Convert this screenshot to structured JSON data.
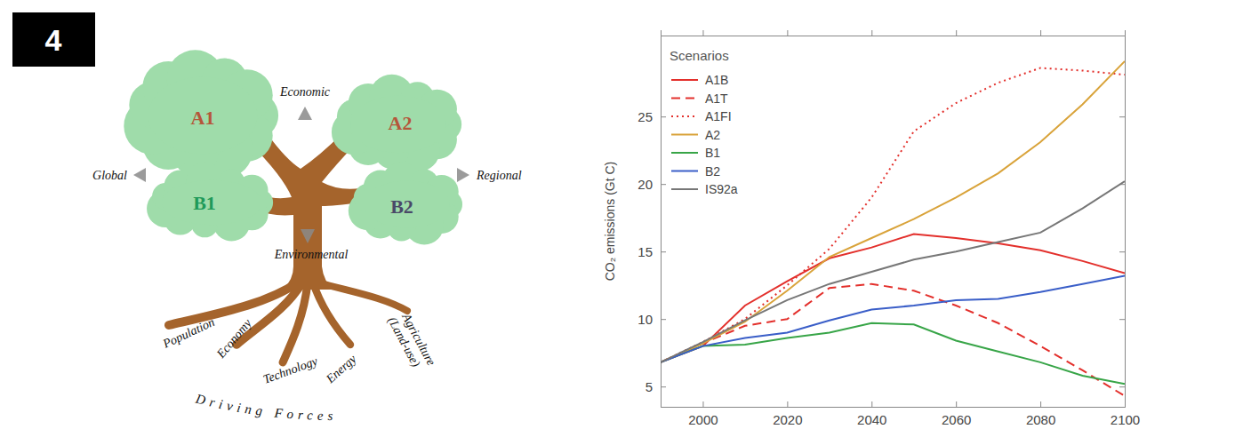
{
  "panel_label": "4",
  "diagram": {
    "scenarios": [
      {
        "label": "A1",
        "color": "#b5563a"
      },
      {
        "label": "A2",
        "color": "#b5563a"
      },
      {
        "label": "B1",
        "color": "#1f9a5a"
      },
      {
        "label": "B2",
        "color": "#4a4968"
      }
    ],
    "directions": {
      "up": "Economic",
      "left": "Global",
      "right": "Regional",
      "down": "Environmental"
    },
    "roots": [
      "Population",
      "Economy",
      "Technology",
      "Energy",
      "Agriculture (Land-use)"
    ],
    "caption": "Driving Forces"
  },
  "chart_data": {
    "type": "line",
    "y_label": "CO₂ emissions (Gt C)",
    "legend": "top-left",
    "legend_title": "Scenarios",
    "grid": false,
    "x": [
      1990,
      2000,
      2010,
      2020,
      2030,
      2040,
      2050,
      2060,
      2070,
      2080,
      2090,
      2100
    ],
    "xlim": [
      1990,
      2100
    ],
    "xticks": [
      2000,
      2020,
      2040,
      2060,
      2080,
      2100
    ],
    "ylim": [
      3.5,
      31
    ],
    "yticks": [
      5,
      10,
      15,
      20,
      25
    ],
    "series": [
      {
        "name": "A1B",
        "color": "#e3302c",
        "line_style": "solid",
        "values": [
          6.8,
          8.0,
          11.0,
          12.8,
          14.5,
          15.3,
          16.3,
          16.0,
          15.6,
          15.1,
          14.3,
          13.4
        ]
      },
      {
        "name": "A1T",
        "color": "#e3302c",
        "line_style": "dashed",
        "values": [
          6.8,
          8.2,
          9.5,
          10.0,
          12.3,
          12.6,
          12.1,
          11.0,
          9.7,
          8.0,
          6.2,
          4.3
        ]
      },
      {
        "name": "A1FI",
        "color": "#e3302c",
        "line_style": "dotted",
        "values": [
          6.8,
          8.3,
          10.0,
          12.5,
          15.2,
          19.0,
          23.9,
          26.0,
          27.5,
          28.6,
          28.4,
          28.1
        ]
      },
      {
        "name": "A2",
        "color": "#d9a33a",
        "line_style": "solid",
        "values": [
          6.8,
          8.2,
          9.8,
          12.1,
          14.6,
          16.0,
          17.4,
          19.0,
          20.8,
          23.1,
          25.9,
          29.1
        ]
      },
      {
        "name": "B1",
        "color": "#38a548",
        "line_style": "solid",
        "values": [
          6.8,
          8.0,
          8.1,
          8.6,
          9.0,
          9.7,
          9.6,
          8.4,
          7.6,
          6.8,
          5.8,
          5.2
        ]
      },
      {
        "name": "B2",
        "color": "#3a5ec8",
        "line_style": "solid",
        "values": [
          6.8,
          8.0,
          8.6,
          9.0,
          9.9,
          10.7,
          11.0,
          11.4,
          11.5,
          12.0,
          12.6,
          13.2
        ]
      },
      {
        "name": "IS92a",
        "color": "#777777",
        "line_style": "solid",
        "values": [
          6.8,
          8.3,
          9.9,
          11.4,
          12.6,
          13.5,
          14.4,
          15.0,
          15.7,
          16.4,
          18.2,
          20.2
        ]
      }
    ]
  }
}
